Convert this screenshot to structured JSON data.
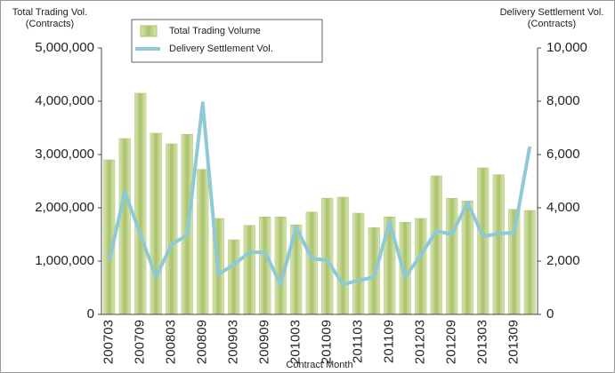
{
  "chart_data": {
    "type": "bar_line",
    "y_label": [
      "Total Trading Vol.",
      "(Contracts)"
    ],
    "y2_label": [
      "Delivery Settlement Vol.",
      "(Contracts)"
    ],
    "x_label": "Contract Month",
    "categories": [
      "200703",
      null,
      "200709",
      null,
      "200803",
      null,
      "200809",
      null,
      "200903",
      null,
      "200909",
      null,
      "201003",
      null,
      "201009",
      null,
      "201103",
      null,
      "201109",
      null,
      "201203",
      null,
      "201209",
      null,
      "201303",
      null,
      "201309",
      null
    ],
    "series": [
      {
        "name": "Total Trading Volume",
        "type": "bar",
        "color": "#a9c26a",
        "values": [
          2900000,
          3300000,
          4150000,
          3400000,
          3200000,
          3380000,
          2720000,
          1800000,
          1400000,
          1670000,
          1830000,
          1830000,
          1680000,
          1920000,
          2180000,
          2200000,
          1900000,
          1630000,
          1830000,
          1730000,
          1800000,
          2600000,
          2180000,
          2130000,
          2750000,
          2620000,
          1970000,
          1950000
        ]
      },
      {
        "name": "Delivery Settlement Vol.",
        "type": "line",
        "axis": "y2",
        "color": "#8ec9d6",
        "values": [
          2000,
          4600,
          3000,
          1400,
          2630,
          2970,
          7930,
          1500,
          1870,
          2330,
          2330,
          1130,
          3270,
          2100,
          2030,
          1130,
          1270,
          1400,
          3470,
          1400,
          2230,
          3130,
          3000,
          4200,
          2930,
          3030,
          3070,
          6300
        ]
      }
    ],
    "ylim": [
      0,
      5000000
    ],
    "yticks": [
      0,
      {
        "value": 1000000,
        "label": "1,000,000"
      },
      {
        "value": 2000000,
        "label": "2,000,000"
      },
      {
        "value": 3000000,
        "label": "3,000,000"
      },
      {
        "value": 4000000,
        "label": "4,000,000"
      },
      {
        "value": 5000000,
        "label": "5,000,000"
      }
    ],
    "y2lim": [
      0,
      10000
    ],
    "y2ticks": [
      0,
      {
        "value": 2000,
        "label": "2,000"
      },
      {
        "value": 4000,
        "label": "4,000"
      },
      {
        "value": 6000,
        "label": "6,000"
      },
      {
        "value": 8000,
        "label": "8,000"
      },
      {
        "value": 10000,
        "label": "10,000"
      }
    ],
    "grid": false,
    "legend": "top-left"
  }
}
